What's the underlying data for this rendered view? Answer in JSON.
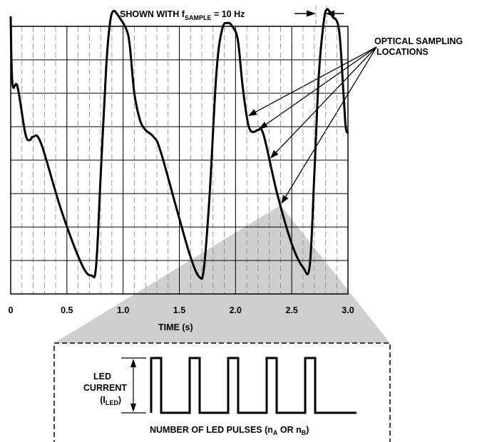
{
  "header": {
    "prefix": "SHOWN WITH f",
    "sub": "SAMPLE",
    "suffix": " = 10 Hz"
  },
  "callout": {
    "line1": "OPTICAL SAMPLING",
    "line2": "LOCATIONS"
  },
  "chart_data": {
    "type": "line",
    "xlabel": "TIME (s)",
    "xlim": [
      0,
      3.0
    ],
    "x_ticks": [
      "0",
      "0.5",
      "1.0",
      "1.5",
      "2.0",
      "2.5",
      "3.0"
    ],
    "grid": true,
    "sample_rate_hz": 10,
    "series": [
      {
        "points": [
          [
            0.0,
            8.3
          ],
          [
            0.015,
            6.3
          ],
          [
            0.06,
            6.2
          ],
          [
            0.13,
            4.8
          ],
          [
            0.17,
            4.6
          ],
          [
            0.2,
            4.7
          ],
          [
            0.27,
            4.5
          ],
          [
            0.45,
            2.5
          ],
          [
            0.63,
            0.9
          ],
          [
            0.72,
            0.55
          ],
          [
            0.76,
            0.85
          ],
          [
            0.8,
            3.5
          ],
          [
            0.85,
            6.8
          ],
          [
            0.88,
            8.0
          ],
          [
            0.91,
            8.45
          ],
          [
            0.96,
            8.3
          ],
          [
            1.03,
            7.9
          ],
          [
            1.06,
            7.4
          ],
          [
            1.1,
            6.0
          ],
          [
            1.15,
            5.2
          ],
          [
            1.2,
            4.9
          ],
          [
            1.27,
            4.7
          ],
          [
            1.33,
            4.3
          ],
          [
            1.48,
            2.5
          ],
          [
            1.6,
            1.1
          ],
          [
            1.68,
            0.5
          ],
          [
            1.72,
            0.8
          ],
          [
            1.77,
            3.0
          ],
          [
            1.83,
            6.6
          ],
          [
            1.88,
            7.9
          ],
          [
            1.93,
            8.1
          ],
          [
            1.97,
            8.0
          ],
          [
            2.02,
            7.6
          ],
          [
            2.06,
            6.3
          ],
          [
            2.1,
            5.3
          ],
          [
            2.13,
            4.9
          ],
          [
            2.17,
            4.85
          ],
          [
            2.2,
            4.9
          ],
          [
            2.25,
            4.75
          ],
          [
            2.37,
            3.0
          ],
          [
            2.5,
            1.5
          ],
          [
            2.6,
            0.8
          ],
          [
            2.66,
            0.85
          ],
          [
            2.7,
            3.5
          ],
          [
            2.74,
            6.5
          ],
          [
            2.78,
            8.0
          ],
          [
            2.81,
            8.5
          ],
          [
            2.86,
            8.3
          ],
          [
            2.92,
            7.9
          ],
          [
            2.96,
            6.0
          ],
          [
            2.98,
            5.0
          ],
          [
            3.0,
            4.8
          ]
        ]
      }
    ]
  },
  "inset": {
    "label_line1": "LED",
    "label_line2": "CURRENT",
    "label_line3_prefix": "(I",
    "label_line3_sub": "LED",
    "label_line3_suffix": ")",
    "caption_prefix": "NUMBER OF LED PULSES (n",
    "caption_sub1": "A",
    "caption_mid": " OR n",
    "caption_sub2": "B",
    "caption_suffix": ")",
    "pulse_count": 5
  }
}
